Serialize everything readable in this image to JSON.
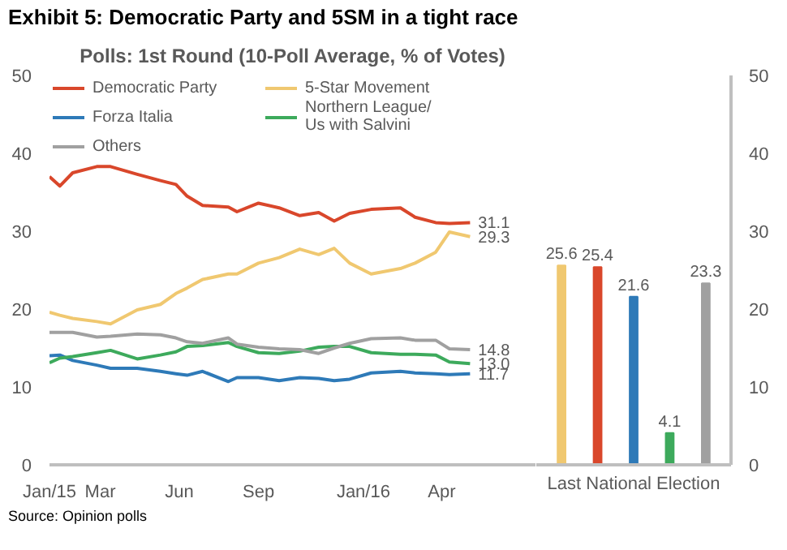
{
  "chart_data": [
    {
      "type": "line",
      "title": "Exhibit 5: Democratic Party and 5SM in a tight race",
      "subtitle": "Polls: 1st Round (10-Poll Average, % of Votes)",
      "annotations": [
        "Source: Opinion polls"
      ],
      "x": [
        "2015-01-01",
        "2015-01-13",
        "2015-01-28",
        "2015-02-25",
        "2015-03-13",
        "2015-04-13",
        "2015-05-10",
        "2015-05-28",
        "2015-06-10",
        "2015-06-28",
        "2015-07-28",
        "2015-08-07",
        "2015-09-01",
        "2015-09-25",
        "2015-10-19",
        "2015-11-10",
        "2015-11-28",
        "2015-12-16",
        "2016-01-10",
        "2016-02-13",
        "2016-03-01",
        "2016-03-25",
        "2016-04-10",
        "2016-05-04"
      ],
      "series": [
        {
          "name": "Democratic Party",
          "color": "#d9472b",
          "values": [
            37.0,
            35.8,
            37.5,
            38.3,
            38.3,
            37.3,
            36.5,
            36.0,
            34.5,
            33.3,
            33.1,
            32.5,
            33.6,
            33.0,
            32.0,
            32.4,
            31.3,
            32.3,
            32.8,
            33.0,
            31.8,
            31.1,
            31.0,
            31.1
          ],
          "value_labels": [
            null,
            null,
            null,
            null,
            null,
            null,
            null,
            null,
            null,
            null,
            null,
            null,
            null,
            null,
            null,
            null,
            null,
            null,
            null,
            null,
            null,
            null,
            null,
            "31.1"
          ]
        },
        {
          "name": "5-Star Movement",
          "color": "#f0c870",
          "values": [
            19.6,
            19.2,
            18.8,
            18.4,
            18.1,
            19.9,
            20.6,
            22.0,
            22.7,
            23.8,
            24.5,
            24.5,
            25.9,
            26.6,
            27.7,
            27.0,
            27.8,
            25.9,
            24.5,
            25.2,
            25.9,
            27.3,
            29.9,
            29.3
          ],
          "value_labels": [
            null,
            null,
            null,
            null,
            null,
            null,
            null,
            null,
            null,
            null,
            null,
            null,
            null,
            null,
            null,
            null,
            null,
            null,
            null,
            null,
            null,
            null,
            null,
            "29.3"
          ]
        },
        {
          "name": "Forza Italia",
          "color": "#2e7ab8",
          "values": [
            14.0,
            14.1,
            13.4,
            12.8,
            12.4,
            12.4,
            12.0,
            11.7,
            11.5,
            12.0,
            10.7,
            11.2,
            11.2,
            10.8,
            11.2,
            11.1,
            10.8,
            11.0,
            11.8,
            12.0,
            11.8,
            11.7,
            11.6,
            11.7
          ],
          "value_labels": [
            null,
            null,
            null,
            null,
            null,
            null,
            null,
            null,
            null,
            null,
            null,
            null,
            null,
            null,
            null,
            null,
            null,
            null,
            null,
            null,
            null,
            null,
            null,
            "11.7"
          ]
        },
        {
          "name": "Northern League/\nUs with Salvini",
          "color": "#3daa5c",
          "values": [
            13.1,
            13.7,
            13.9,
            14.4,
            14.7,
            13.6,
            14.1,
            14.5,
            15.2,
            15.3,
            15.7,
            15.2,
            14.4,
            14.3,
            14.6,
            15.1,
            15.2,
            15.2,
            14.4,
            14.2,
            14.2,
            14.1,
            13.2,
            13.0
          ],
          "value_labels": [
            null,
            null,
            null,
            null,
            null,
            null,
            null,
            null,
            null,
            null,
            null,
            null,
            null,
            null,
            null,
            null,
            null,
            null,
            null,
            null,
            null,
            null,
            null,
            "13.0"
          ]
        },
        {
          "name": "Others",
          "color": "#a0a0a0",
          "values": [
            17.0,
            17.0,
            17.0,
            16.4,
            16.5,
            16.8,
            16.7,
            16.3,
            15.8,
            15.6,
            16.3,
            15.5,
            15.1,
            14.9,
            14.8,
            14.3,
            15.0,
            15.6,
            16.2,
            16.3,
            16.0,
            16.0,
            14.9,
            14.8
          ],
          "value_labels": [
            null,
            null,
            null,
            null,
            null,
            null,
            null,
            null,
            null,
            null,
            null,
            null,
            null,
            null,
            null,
            null,
            null,
            null,
            null,
            null,
            null,
            null,
            null,
            "14.8"
          ]
        }
      ],
      "xlim": [
        "2015-01-01",
        "2016-07-20"
      ],
      "xticks": [
        {
          "value": "2015-01-01",
          "label": "Jan/15"
        },
        {
          "value": "2015-03-01",
          "label": "Mar"
        },
        {
          "value": "2015-06-01",
          "label": "Jun"
        },
        {
          "value": "2015-09-01",
          "label": "Sep"
        },
        {
          "value": "2016-01-01",
          "label": "Jan/16"
        },
        {
          "value": "2016-04-01",
          "label": "Apr"
        }
      ],
      "ylim": [
        0,
        50
      ],
      "yticks": [
        0,
        10,
        20,
        30,
        40,
        50
      ],
      "grid": false,
      "legend": "top"
    },
    {
      "type": "bar",
      "xlabel": "Last National Election",
      "categories": [
        null,
        null,
        null,
        null,
        null
      ],
      "values": [
        25.6,
        25.4,
        21.6,
        4.1,
        23.3
      ],
      "colors": [
        "#f0c870",
        "#d9472b",
        "#2e7ab8",
        "#3daa5c",
        "#a0a0a0"
      ],
      "data_labels": true,
      "ylim": [
        0,
        50
      ],
      "yticks": [
        0,
        10,
        20,
        30,
        40,
        50
      ],
      "grid": false
    }
  ]
}
